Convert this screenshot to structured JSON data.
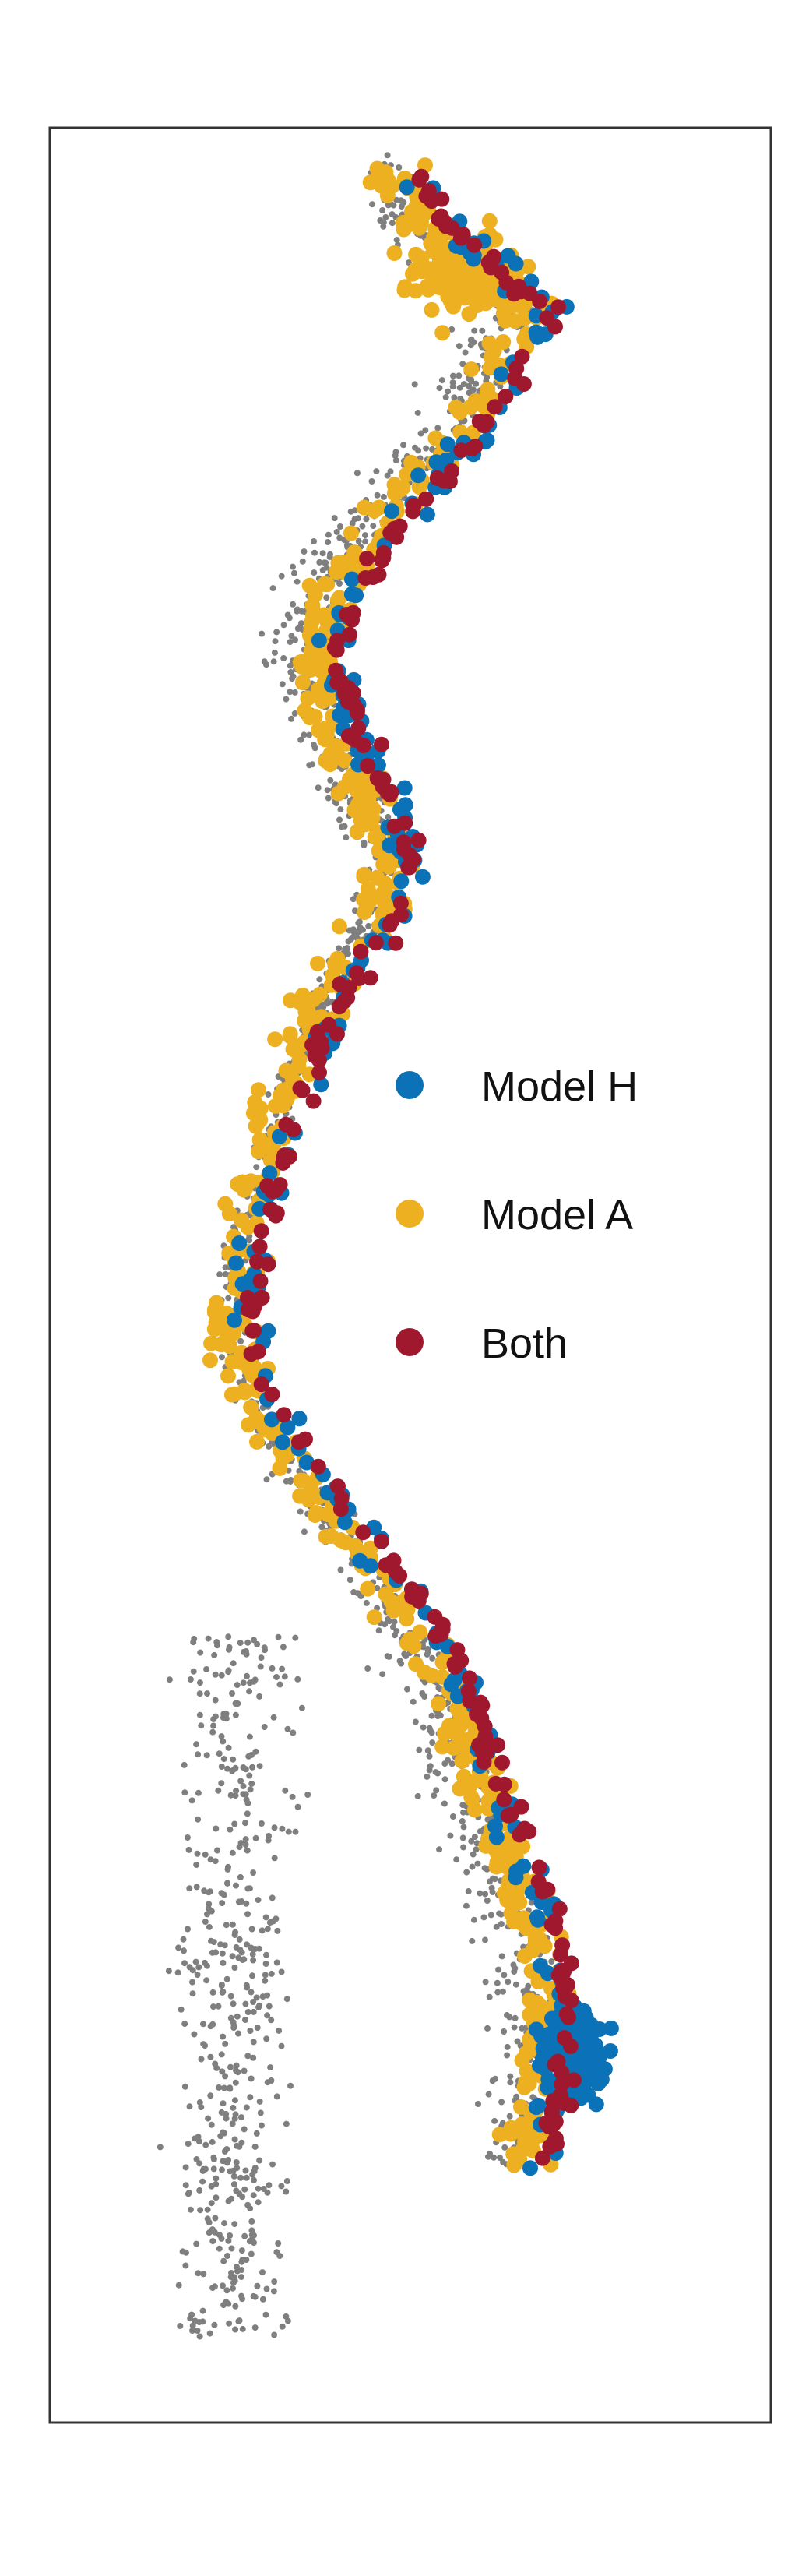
{
  "colors": {
    "model_h": "#0b72b8",
    "model_a": "#ecb020",
    "both": "#a0182e",
    "background_points": "#7f7f7f",
    "frame": "#333333"
  },
  "legend": {
    "items": [
      {
        "key": "model_h",
        "label": "Model H",
        "color": "#0b72b8"
      },
      {
        "key": "model_a",
        "label": "Model A",
        "color": "#ecb020"
      },
      {
        "key": "both",
        "label": "Both",
        "color": "#a0182e"
      }
    ]
  },
  "map": {
    "description_type": "point map",
    "point_categories": [
      "background",
      "model_h",
      "model_a",
      "both"
    ]
  }
}
